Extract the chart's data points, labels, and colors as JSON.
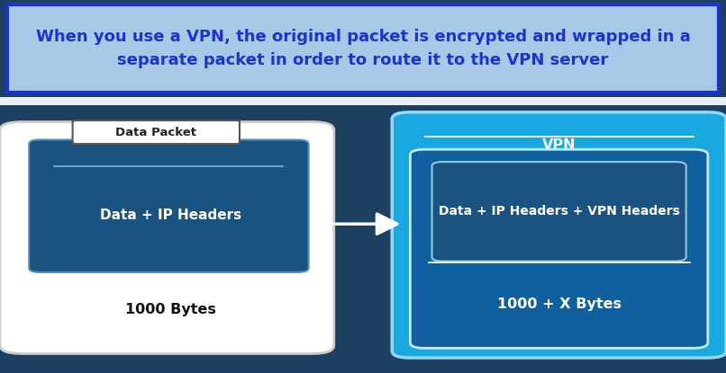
{
  "title_text": "When you use a VPN, the original packet is encrypted and wrapped in a\nseparate packet in order to route it to the VPN server",
  "title_bg": "#a8c8e8",
  "title_border": "#1a35cc",
  "title_color": "#1a35cc",
  "bg_color": "#1e4060",
  "white_strip_color": "#e8eef5",
  "left_box_bg": "#ffffff",
  "left_inner_bg": "#1a5280",
  "left_inner_border": "#4a90b8",
  "left_label": "Data Packet",
  "left_label_border": "#555555",
  "left_inner_text": "Data + IP Headers",
  "left_inner_line_color": "#7ab0d0",
  "left_bytes_text": "1000 Bytes",
  "left_bytes_color": "#111111",
  "right_box_bg": "#1aa8e0",
  "right_box_border": "#80d4f5",
  "right_inner_bg": "#1060a0",
  "right_inner2_bg": "#1a5280",
  "right_label": "VPN",
  "right_label_color": "#ffffff",
  "right_inner_text": "Data + IP Headers + VPN Headers",
  "right_bytes_text": "1000 + X Bytes",
  "right_bytes_color": "#ffffff",
  "arrow_color": "#ffffff",
  "fig_width": 8.06,
  "fig_height": 4.15,
  "dpi": 100
}
